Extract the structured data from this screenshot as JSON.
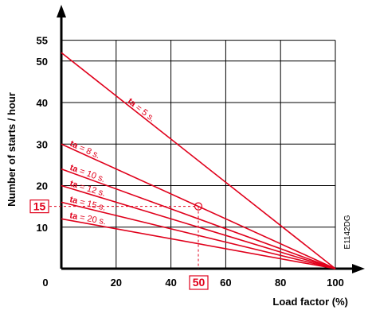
{
  "chart_data": {
    "type": "line",
    "xlabel": "Load factor (%)",
    "ylabel": "Number of starts / hour",
    "xlim": [
      0,
      100
    ],
    "ylim": [
      0,
      55
    ],
    "x_ticks": [
      "0",
      "20",
      "40",
      "60",
      "80",
      "100"
    ],
    "y_ticks": [
      "10",
      "20",
      "30",
      "40",
      "50",
      "55"
    ],
    "grid": true,
    "series": [
      {
        "name_prefix": "ta",
        "name_suffix": " = 5 s.",
        "x": [
          0,
          100
        ],
        "y": [
          52,
          0
        ]
      },
      {
        "name_prefix": "ta",
        "name_suffix": " = 8 s.",
        "x": [
          0,
          100
        ],
        "y": [
          30,
          0
        ]
      },
      {
        "name_prefix": "ta",
        "name_suffix": " = 10 s.",
        "x": [
          0,
          100
        ],
        "y": [
          24,
          0
        ]
      },
      {
        "name_prefix": "ta",
        "name_suffix": " = 12 s.",
        "x": [
          0,
          100
        ],
        "y": [
          20,
          0
        ]
      },
      {
        "name_prefix": "ta",
        "name_suffix": " = 15 s.",
        "x": [
          0,
          100
        ],
        "y": [
          16,
          0
        ]
      },
      {
        "name_prefix": "ta",
        "name_suffix": " = 20 s.",
        "x": [
          0,
          100
        ],
        "y": [
          12,
          0
        ]
      }
    ],
    "highlight": {
      "x": 50,
      "y": 15,
      "x_label": "50",
      "y_label": "15"
    },
    "reference_code": "E1142DG",
    "line_color": "#e0001b"
  }
}
